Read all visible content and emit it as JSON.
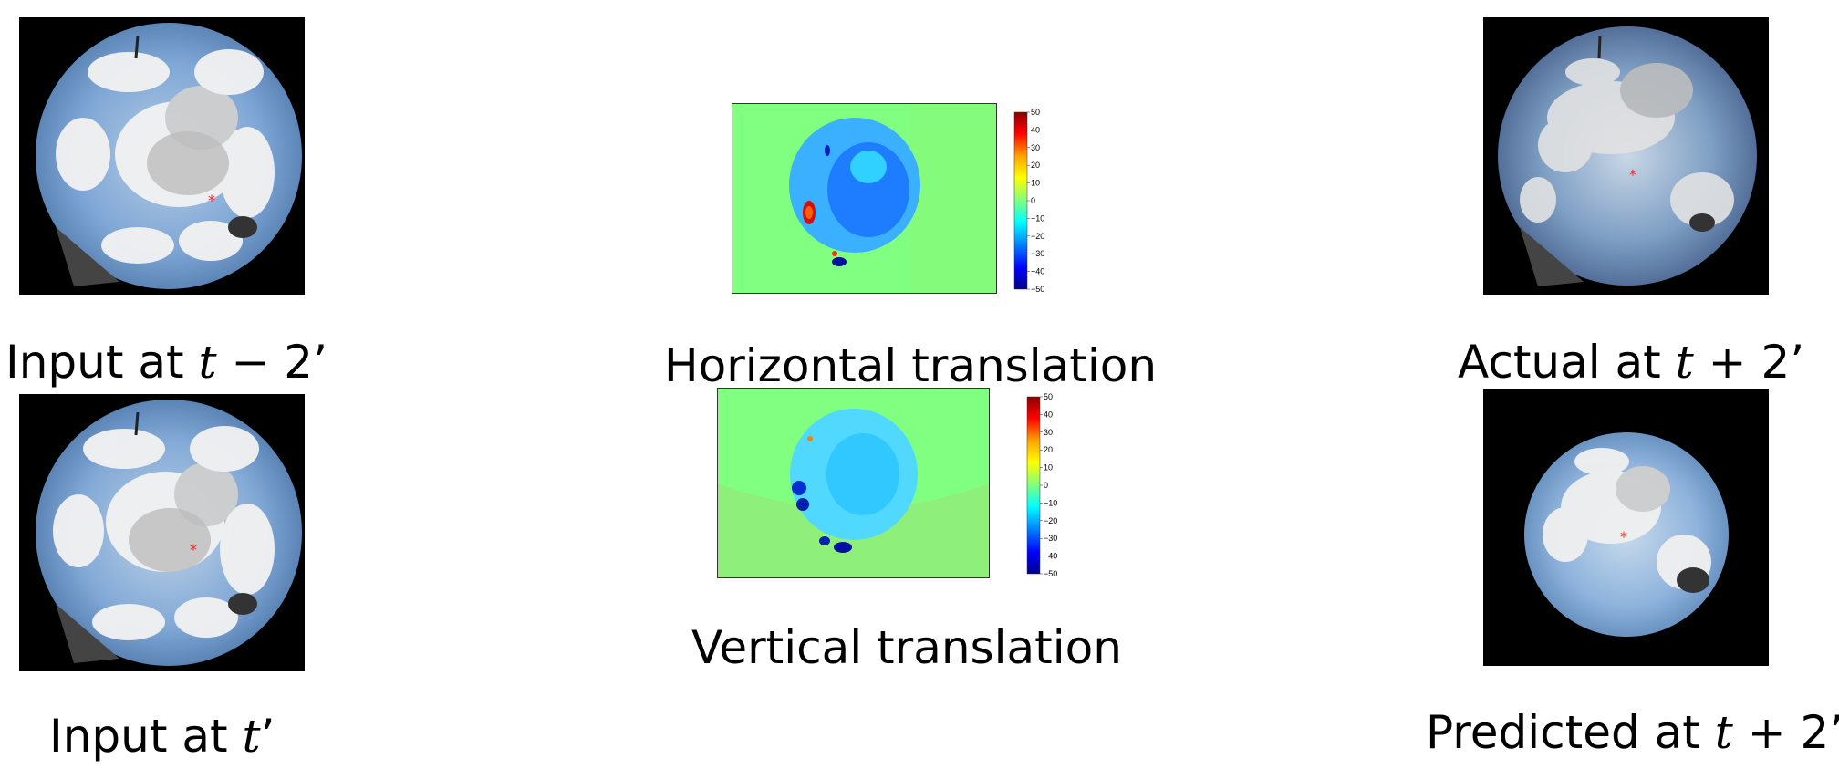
{
  "captions": {
    "input_t_minus_2": {
      "prefix": "Input at ",
      "var": "t",
      "op": " − ",
      "num": "2’"
    },
    "input_t": {
      "prefix": "Input at ",
      "var": "t",
      "suffix": "’"
    },
    "actual_t_plus_2": {
      "prefix": "Actual at ",
      "var": "t",
      "op": " + ",
      "num": "2’"
    },
    "predicted_t_plus_2": {
      "prefix": "Predicted at ",
      "var": "t",
      "op": " + ",
      "num": "2’"
    },
    "horizontal": "Horizontal translation",
    "vertical": "Vertical translation"
  },
  "colorbar": {
    "ticks": [
      "50",
      "40",
      "30",
      "20",
      "10",
      "0",
      "−10",
      "−20",
      "−30",
      "−40",
      "−50"
    ],
    "colors": [
      "#8b0000",
      "#ff0000",
      "#ffa500",
      "#ffff00",
      "#7fff7f",
      "#00ffff",
      "#0080ff",
      "#0000ff",
      "#00008b"
    ]
  },
  "colors": {
    "flow_background": "#80ff80",
    "sky_mask": "#000000",
    "sun_marker": "#ff2020"
  }
}
